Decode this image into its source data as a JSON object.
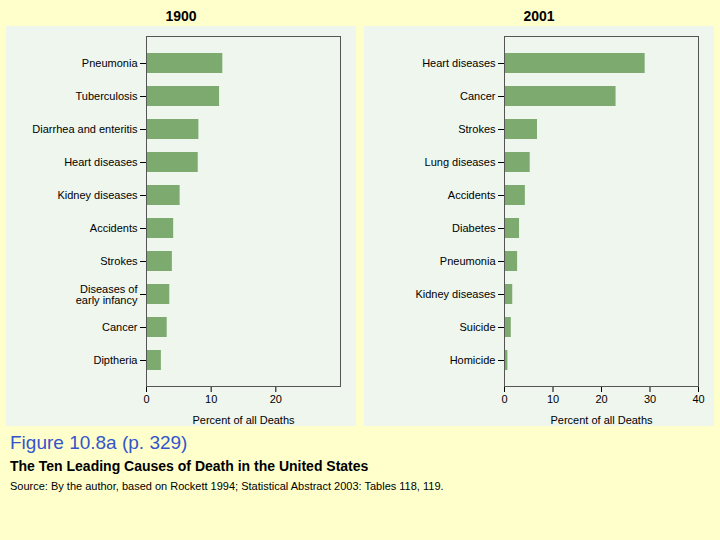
{
  "title": "Figure 10.8a  (p. 329)",
  "subtitle": "The Ten Leading Causes of Death in the United States",
  "annotations": [
    "Source: By the author, based on Rockett 1994;  Statistical Abstract 2003: Tables 118, 119."
  ],
  "chart_data": [
    {
      "type": "bar",
      "title": "1900",
      "orientation": "horizontal",
      "categories": [
        "Pneumonia",
        "Tuberculosis",
        "Diarrhea and enteritis",
        "Heart diseases",
        "Kidney diseases",
        "Accidents",
        "Strokes",
        "Diseases of\nearly infancy",
        "Cancer",
        "Diptheria"
      ],
      "values": [
        11.8,
        11.3,
        8.1,
        8.0,
        5.2,
        4.2,
        4.0,
        3.6,
        3.2,
        2.3
      ],
      "color": "#7daa6f",
      "xlabel": "Percent of all Deaths",
      "xlim": [
        0,
        30
      ],
      "xticks": [
        0,
        10,
        20
      ],
      "grid": false
    },
    {
      "type": "bar",
      "title": "2001",
      "orientation": "horizontal",
      "categories": [
        "Heart diseases",
        "Cancer",
        "Strokes",
        "Lung diseases",
        "Accidents",
        "Diabetes",
        "Pneumonia",
        "Kidney diseases",
        "Suicide",
        "Homicide"
      ],
      "values": [
        29.0,
        23.0,
        6.8,
        5.3,
        4.3,
        3.1,
        2.7,
        1.7,
        1.4,
        0.7
      ],
      "color": "#7daa6f",
      "xlabel": "Percent of all Deaths",
      "xlim": [
        0,
        40
      ],
      "xticks": [
        0,
        10,
        20,
        30,
        40
      ],
      "grid": false
    }
  ]
}
